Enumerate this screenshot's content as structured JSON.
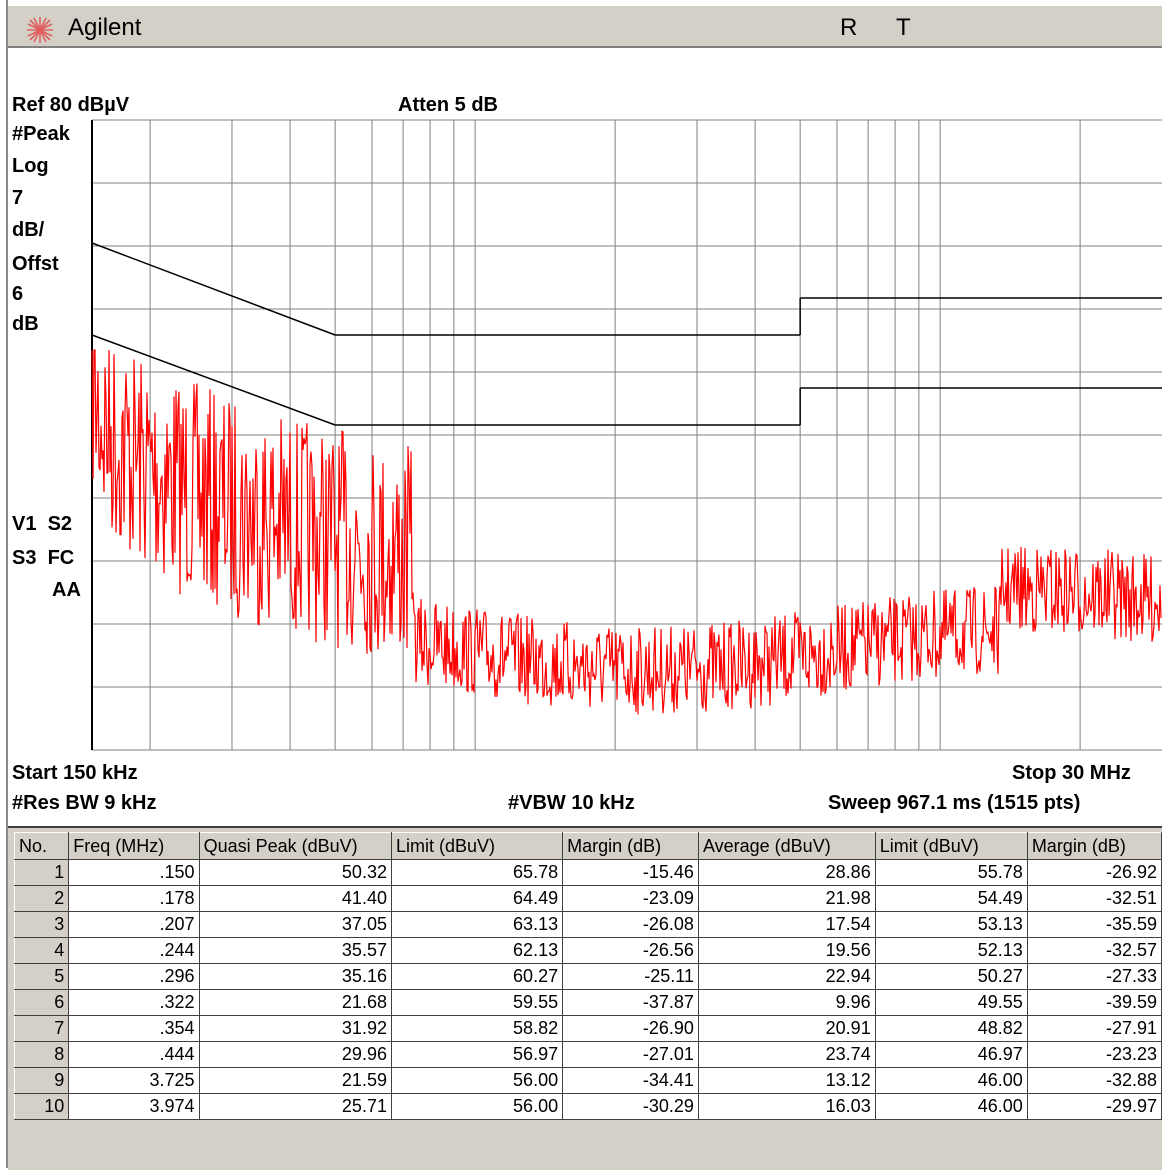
{
  "window": {
    "brand": "Agilent",
    "flag_r": "R",
    "flag_t": "T"
  },
  "header": {
    "ref": "Ref 80 dBµV",
    "atten": "Atten 5 dB"
  },
  "side_labels": {
    "mode": "#Peak",
    "scale": "Log",
    "scale_val": "7",
    "scale_unit": "dB/",
    "offset_label": "Offst",
    "offset_val": "6",
    "offset_unit": "dB"
  },
  "trace_flags": {
    "line1": "V1  S2",
    "line2": "S3  FC",
    "line3": "AA"
  },
  "footer": {
    "start": "Start 150 kHz",
    "stop": "Stop 30 MHz",
    "rbw": "#Res BW 9 kHz",
    "vbw": "#VBW 10 kHz",
    "sweep": "Sweep 967.1 ms (1515 pts)"
  },
  "colors": {
    "trace": "#ff0000",
    "grid": "#808080",
    "limit": "#000000",
    "panel": "#d4d0c8"
  },
  "table": {
    "headers": [
      "No.",
      "Freq (MHz)",
      "Quasi Peak  (dBuV)",
      "Limit (dBuV)",
      "Margin (dB)",
      "Average (dBuV)",
      "Limit  (dBuV)",
      "Margin (dB)"
    ],
    "rows": [
      [
        "1",
        ".150",
        "50.32",
        "65.78",
        "-15.46",
        "28.86",
        "55.78",
        "-26.92"
      ],
      [
        "2",
        ".178",
        "41.40",
        "64.49",
        "-23.09",
        "21.98",
        "54.49",
        "-32.51"
      ],
      [
        "3",
        ".207",
        "37.05",
        "63.13",
        "-26.08",
        "17.54",
        "53.13",
        "-35.59"
      ],
      [
        "4",
        ".244",
        "35.57",
        "62.13",
        "-26.56",
        "19.56",
        "52.13",
        "-32.57"
      ],
      [
        "5",
        ".296",
        "35.16",
        "60.27",
        "-25.11",
        "22.94",
        "50.27",
        "-27.33"
      ],
      [
        "6",
        ".322",
        "21.68",
        "59.55",
        "-37.87",
        "9.96",
        "49.55",
        "-39.59"
      ],
      [
        "7",
        ".354",
        "31.92",
        "58.82",
        "-26.90",
        "20.91",
        "48.82",
        "-27.91"
      ],
      [
        "8",
        ".444",
        "29.96",
        "56.97",
        "-27.01",
        "23.74",
        "46.97",
        "-23.23"
      ],
      [
        "9",
        "3.725",
        "21.59",
        "56.00",
        "-34.41",
        "13.12",
        "46.00",
        "-32.88"
      ],
      [
        "10",
        "3.974",
        "25.71",
        "56.00",
        "-30.29",
        "16.03",
        "46.00",
        "-29.97"
      ]
    ]
  }
}
